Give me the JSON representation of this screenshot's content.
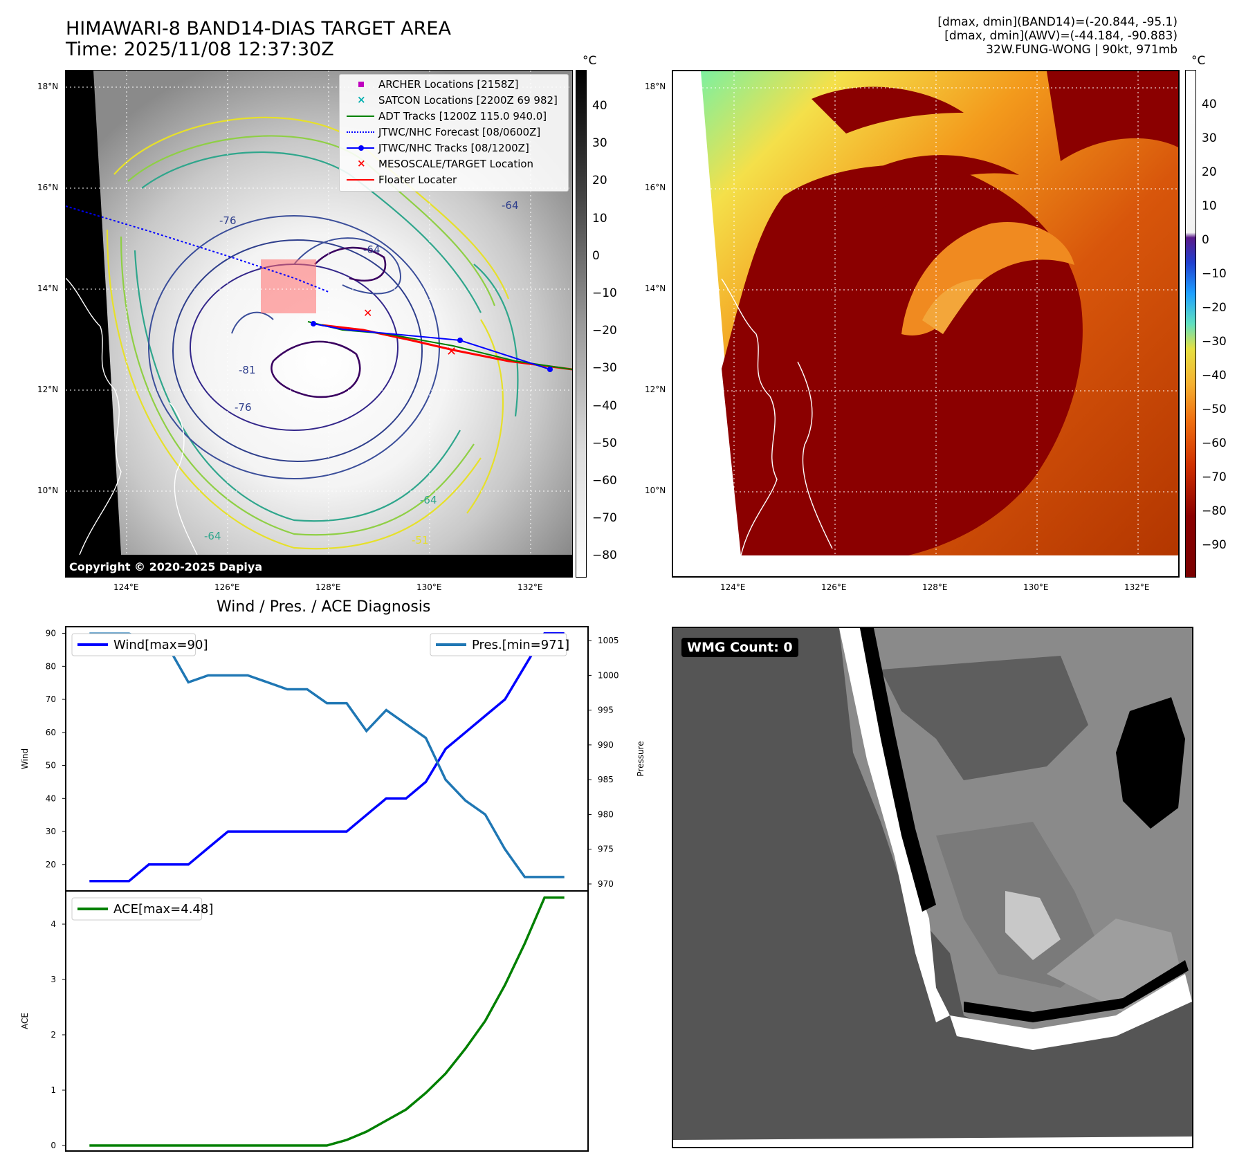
{
  "header": {
    "title_line1": "HIMAWARI-8 BAND14-DIAS TARGET AREA",
    "title_line2": "Time: 2025/11/08 12:37:30Z",
    "info_line1": "[dmax, dmin](BAND14)=(-20.844, -95.1)",
    "info_line2": "[dmax, dmin](AWV)=(-44.184, -90.883)",
    "info_line3": "32W.FUNG-WONG | 90kt, 971mb"
  },
  "map_axes": {
    "lat_labels": [
      "18°N",
      "16°N",
      "14°N",
      "12°N",
      "10°N"
    ],
    "lon_labels": [
      "124°E",
      "126°E",
      "128°E",
      "130°E",
      "132°E"
    ]
  },
  "legend": {
    "items": [
      {
        "label": "ARCHER Locations [2158Z]",
        "color": "#c000c0",
        "symbol": "square"
      },
      {
        "label": "SATCON Locations [2200Z 69 982]",
        "color": "#00b0b0",
        "symbol": "x"
      },
      {
        "label": "ADT Tracks [1200Z 115.0 940.0]",
        "color": "#008000",
        "symbol": "line"
      },
      {
        "label": "JTWC/NHC Forecast [08/0600Z]",
        "color": "#0000ff",
        "symbol": "dotted"
      },
      {
        "label": "JTWC/NHC Tracks [08/1200Z]",
        "color": "#0000ff",
        "symbol": "line-dot"
      },
      {
        "label": "MESOSCALE/TARGET Location",
        "color": "#ff0000",
        "symbol": "x"
      },
      {
        "label": "Floater Locater",
        "color": "#ff0000",
        "symbol": "line"
      }
    ]
  },
  "contour_labels": [
    "-76",
    "-64",
    "-81",
    "-76",
    "-64",
    "-64",
    "-51",
    "-64"
  ],
  "copyright": "Copyright © 2020-2025 Dapiya",
  "colorbar_gray": {
    "unit": "°C",
    "ticks": [
      "40",
      "30",
      "20",
      "10",
      "0",
      "−10",
      "−20",
      "−30",
      "−40",
      "−50",
      "−60",
      "−70",
      "−80"
    ]
  },
  "colorbar_color": {
    "unit": "°C",
    "ticks": [
      "40",
      "30",
      "20",
      "10",
      "0",
      "−10",
      "−20",
      "−30",
      "−40",
      "−50",
      "−60",
      "−70",
      "−80",
      "−90"
    ]
  },
  "chart_data": [
    {
      "type": "line",
      "title": "Wind / Pres. / ACE Diagnosis",
      "ylabel": "Wind",
      "ylabel_right": "Pressure",
      "ylim": [
        12,
        92
      ],
      "ylim_right": [
        969,
        1007
      ],
      "yticks": [
        20,
        30,
        40,
        50,
        60,
        70,
        80,
        90
      ],
      "yticks_right": [
        970,
        975,
        980,
        985,
        990,
        995,
        1000,
        1005
      ],
      "x": [
        0,
        1,
        2,
        3,
        4,
        5,
        6,
        7,
        8,
        9,
        10,
        11,
        12,
        13,
        14,
        15,
        16,
        17,
        18,
        19,
        20,
        21,
        22,
        23,
        24
      ],
      "series": [
        {
          "name": "Wind[max=90]",
          "axis": "left",
          "color": "#0000ff",
          "values": [
            15,
            15,
            15,
            20,
            20,
            20,
            25,
            30,
            30,
            30,
            30,
            30,
            30,
            30,
            35,
            40,
            40,
            45,
            55,
            60,
            65,
            70,
            80,
            90,
            90
          ]
        },
        {
          "name": "Pres.[min=971]",
          "axis": "right",
          "color": "#1f77b4",
          "values": [
            1006,
            1006,
            1006,
            1005,
            1004,
            999,
            1000,
            1000,
            1000,
            999,
            998,
            998,
            996,
            996,
            992,
            995,
            993,
            991,
            985,
            982,
            980,
            975,
            971,
            971,
            971
          ]
        }
      ]
    },
    {
      "type": "line",
      "ylabel": "ACE",
      "ylim": [
        -0.1,
        4.6
      ],
      "yticks": [
        0,
        1,
        2,
        3,
        4
      ],
      "x": [
        0,
        1,
        2,
        3,
        4,
        5,
        6,
        7,
        8,
        9,
        10,
        11,
        12,
        13,
        14,
        15,
        16,
        17,
        18,
        19,
        20,
        21,
        22,
        23,
        24
      ],
      "series": [
        {
          "name": "ACE[max=4.48]",
          "color": "#008000",
          "values": [
            0,
            0,
            0,
            0,
            0,
            0,
            0,
            0,
            0,
            0,
            0,
            0,
            0,
            0.1,
            0.25,
            0.45,
            0.65,
            0.95,
            1.3,
            1.75,
            2.25,
            2.9,
            3.65,
            4.48,
            4.48
          ]
        }
      ]
    }
  ],
  "wmg": {
    "label": "WMG Count: 0"
  }
}
